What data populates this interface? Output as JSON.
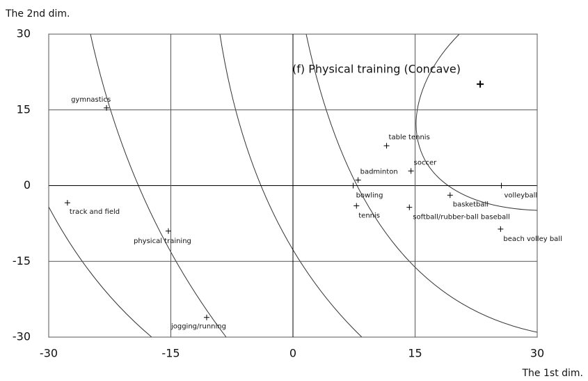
{
  "chart_data": {
    "type": "scatter",
    "title": "(f) Physical training (Concave)",
    "x_label": "The 1st dim.",
    "y_label": "The 2nd dim.",
    "labels": [
      "gymnastics",
      "track and field",
      "physical training",
      "jogging/running",
      "table tennis",
      "soccer",
      "badminton",
      "bowling",
      "tennis",
      "softball/rubber-ball baseball",
      "basketball",
      "volleyball",
      "beach volley ball",
      null
    ],
    "x": [
      -22.9,
      -27.7,
      -15.3,
      -10.6,
      11.5,
      14.5,
      8.0,
      7.4,
      7.8,
      14.3,
      19.3,
      25.6,
      25.5,
      23.0
    ],
    "values": [
      15.4,
      -3.4,
      -9.0,
      -26.1,
      7.9,
      2.9,
      1.1,
      0.0,
      -4.0,
      -4.3,
      -1.9,
      0.0,
      -8.6,
      20.1
    ],
    "color": "#000000",
    "xlim": [
      -30,
      30
    ],
    "xticks": [
      -30,
      -15,
      0,
      15,
      30
    ],
    "ylim": [
      -30,
      30
    ],
    "yticks": [
      -30,
      -15,
      0,
      15,
      30
    ],
    "grid": true
  }
}
